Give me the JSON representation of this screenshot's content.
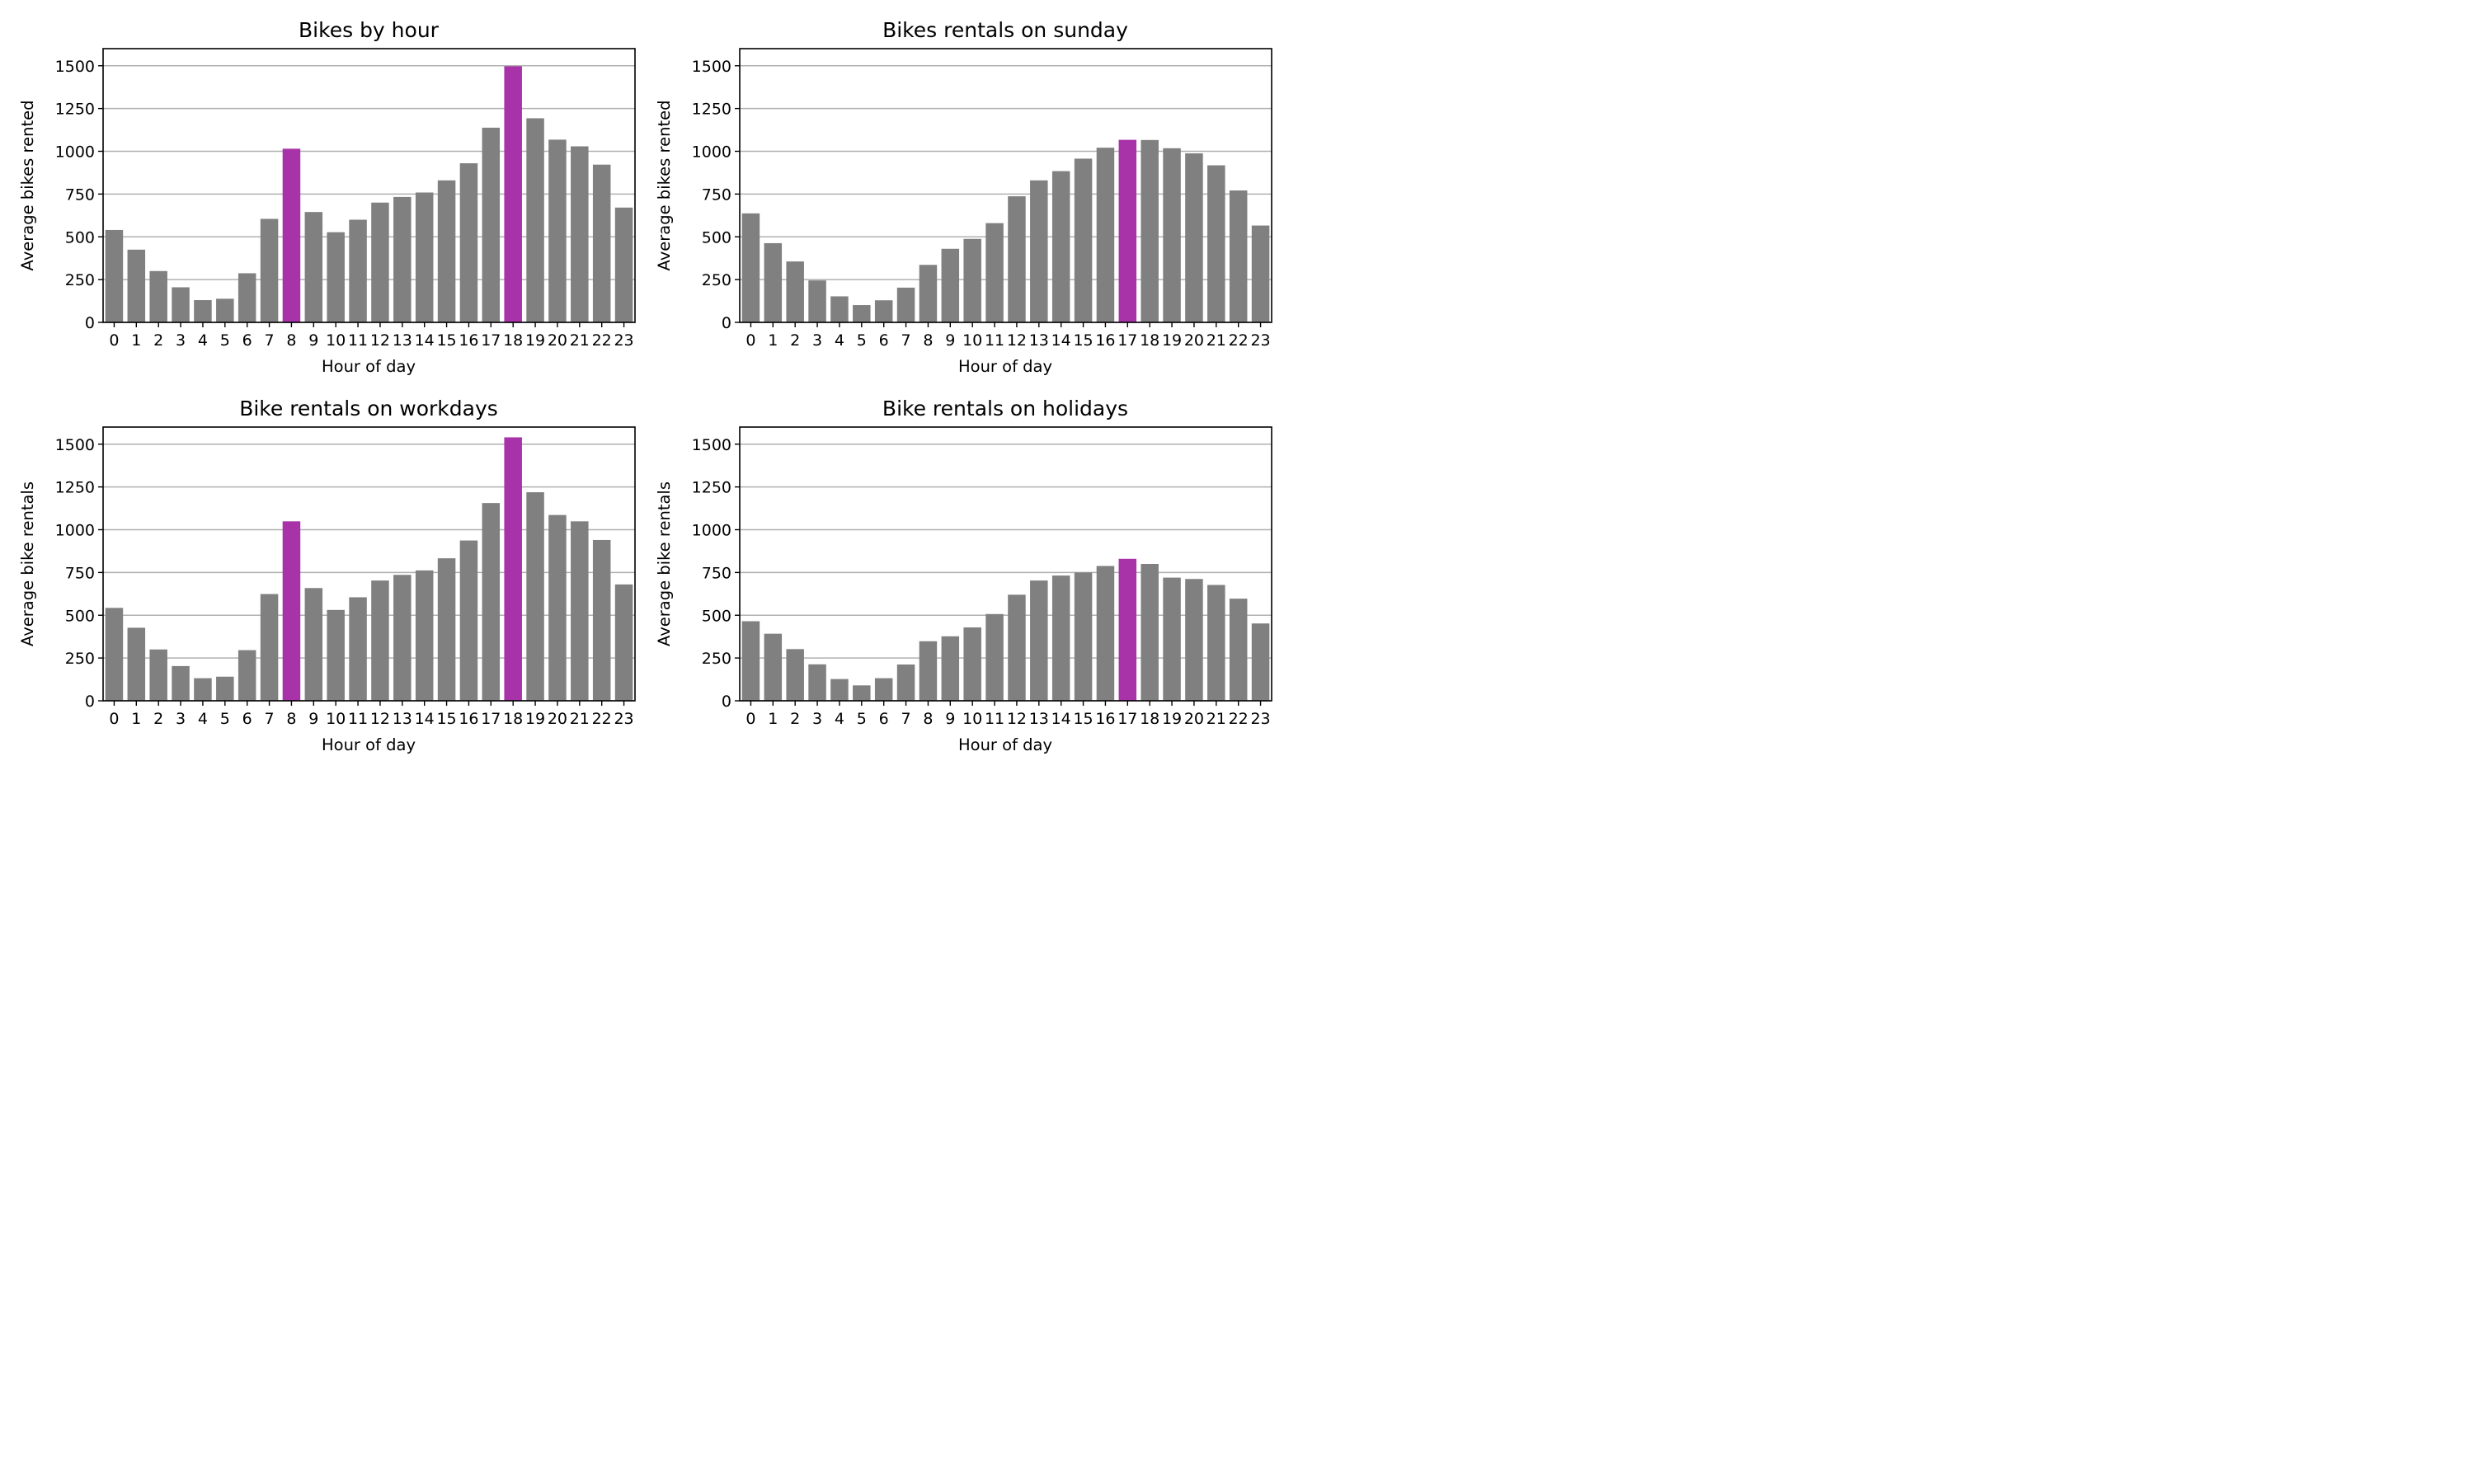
{
  "colors": {
    "bar": "#808080",
    "highlight": "#a832a8",
    "grid": "#b0b0b0"
  },
  "chart_data": [
    {
      "type": "bar",
      "title": "Bikes by hour",
      "xlabel": "Hour of day",
      "ylabel": "Average bikes rented",
      "categories": [
        "0",
        "1",
        "2",
        "3",
        "4",
        "5",
        "6",
        "7",
        "8",
        "9",
        "10",
        "11",
        "12",
        "13",
        "14",
        "15",
        "16",
        "17",
        "18",
        "19",
        "20",
        "21",
        "22",
        "23"
      ],
      "values": [
        540,
        425,
        300,
        205,
        130,
        138,
        287,
        605,
        1015,
        645,
        527,
        600,
        700,
        733,
        759,
        830,
        930,
        1138,
        1497,
        1193,
        1068,
        1029,
        922,
        671
      ],
      "highlight": [
        "8",
        "18"
      ],
      "ylim": [
        0,
        1600
      ],
      "yticks": [
        0,
        250,
        500,
        750,
        1000,
        1250,
        1500
      ],
      "grid": "y"
    },
    {
      "type": "bar",
      "title": "Bikes rentals on sunday",
      "xlabel": "Hour of day",
      "ylabel": "Average bikes rented",
      "categories": [
        "0",
        "1",
        "2",
        "3",
        "4",
        "5",
        "6",
        "7",
        "8",
        "9",
        "10",
        "11",
        "12",
        "13",
        "14",
        "15",
        "16",
        "17",
        "18",
        "19",
        "20",
        "21",
        "22",
        "23"
      ],
      "values": [
        637,
        463,
        356,
        245,
        152,
        101,
        129,
        203,
        336,
        430,
        488,
        580,
        737,
        830,
        884,
        957,
        1021,
        1067,
        1066,
        1018,
        988,
        918,
        771,
        566
      ],
      "highlight": [
        "17"
      ],
      "ylim": [
        0,
        1600
      ],
      "yticks": [
        0,
        250,
        500,
        750,
        1000,
        1250,
        1500
      ],
      "grid": "y"
    },
    {
      "type": "bar",
      "title": "Bike rentals on workdays",
      "xlabel": "Hour of day",
      "ylabel": "Average bike rentals",
      "categories": [
        "0",
        "1",
        "2",
        "3",
        "4",
        "5",
        "6",
        "7",
        "8",
        "9",
        "10",
        "11",
        "12",
        "13",
        "14",
        "15",
        "16",
        "17",
        "18",
        "19",
        "20",
        "21",
        "22",
        "23"
      ],
      "values": [
        543,
        427,
        300,
        203,
        132,
        141,
        296,
        624,
        1049,
        659,
        531,
        605,
        703,
        736,
        762,
        833,
        937,
        1156,
        1540,
        1219,
        1086,
        1049,
        940,
        680
      ],
      "highlight": [
        "8",
        "18"
      ],
      "ylim": [
        0,
        1600
      ],
      "yticks": [
        0,
        250,
        500,
        750,
        1000,
        1250,
        1500
      ],
      "grid": "y"
    },
    {
      "type": "bar",
      "title": "Bike rentals on holidays",
      "xlabel": "Hour of day",
      "ylabel": "Average bike rentals",
      "categories": [
        "0",
        "1",
        "2",
        "3",
        "4",
        "5",
        "6",
        "7",
        "8",
        "9",
        "10",
        "11",
        "12",
        "13",
        "14",
        "15",
        "16",
        "17",
        "18",
        "19",
        "20",
        "21",
        "22",
        "23"
      ],
      "values": [
        465,
        392,
        302,
        213,
        127,
        90,
        132,
        212,
        348,
        377,
        429,
        507,
        620,
        703,
        732,
        750,
        788,
        830,
        800,
        720,
        712,
        677,
        597,
        452
      ],
      "highlight": [
        "17"
      ],
      "ylim": [
        0,
        1600
      ],
      "yticks": [
        0,
        250,
        500,
        750,
        1000,
        1250,
        1500
      ],
      "grid": "y"
    }
  ]
}
